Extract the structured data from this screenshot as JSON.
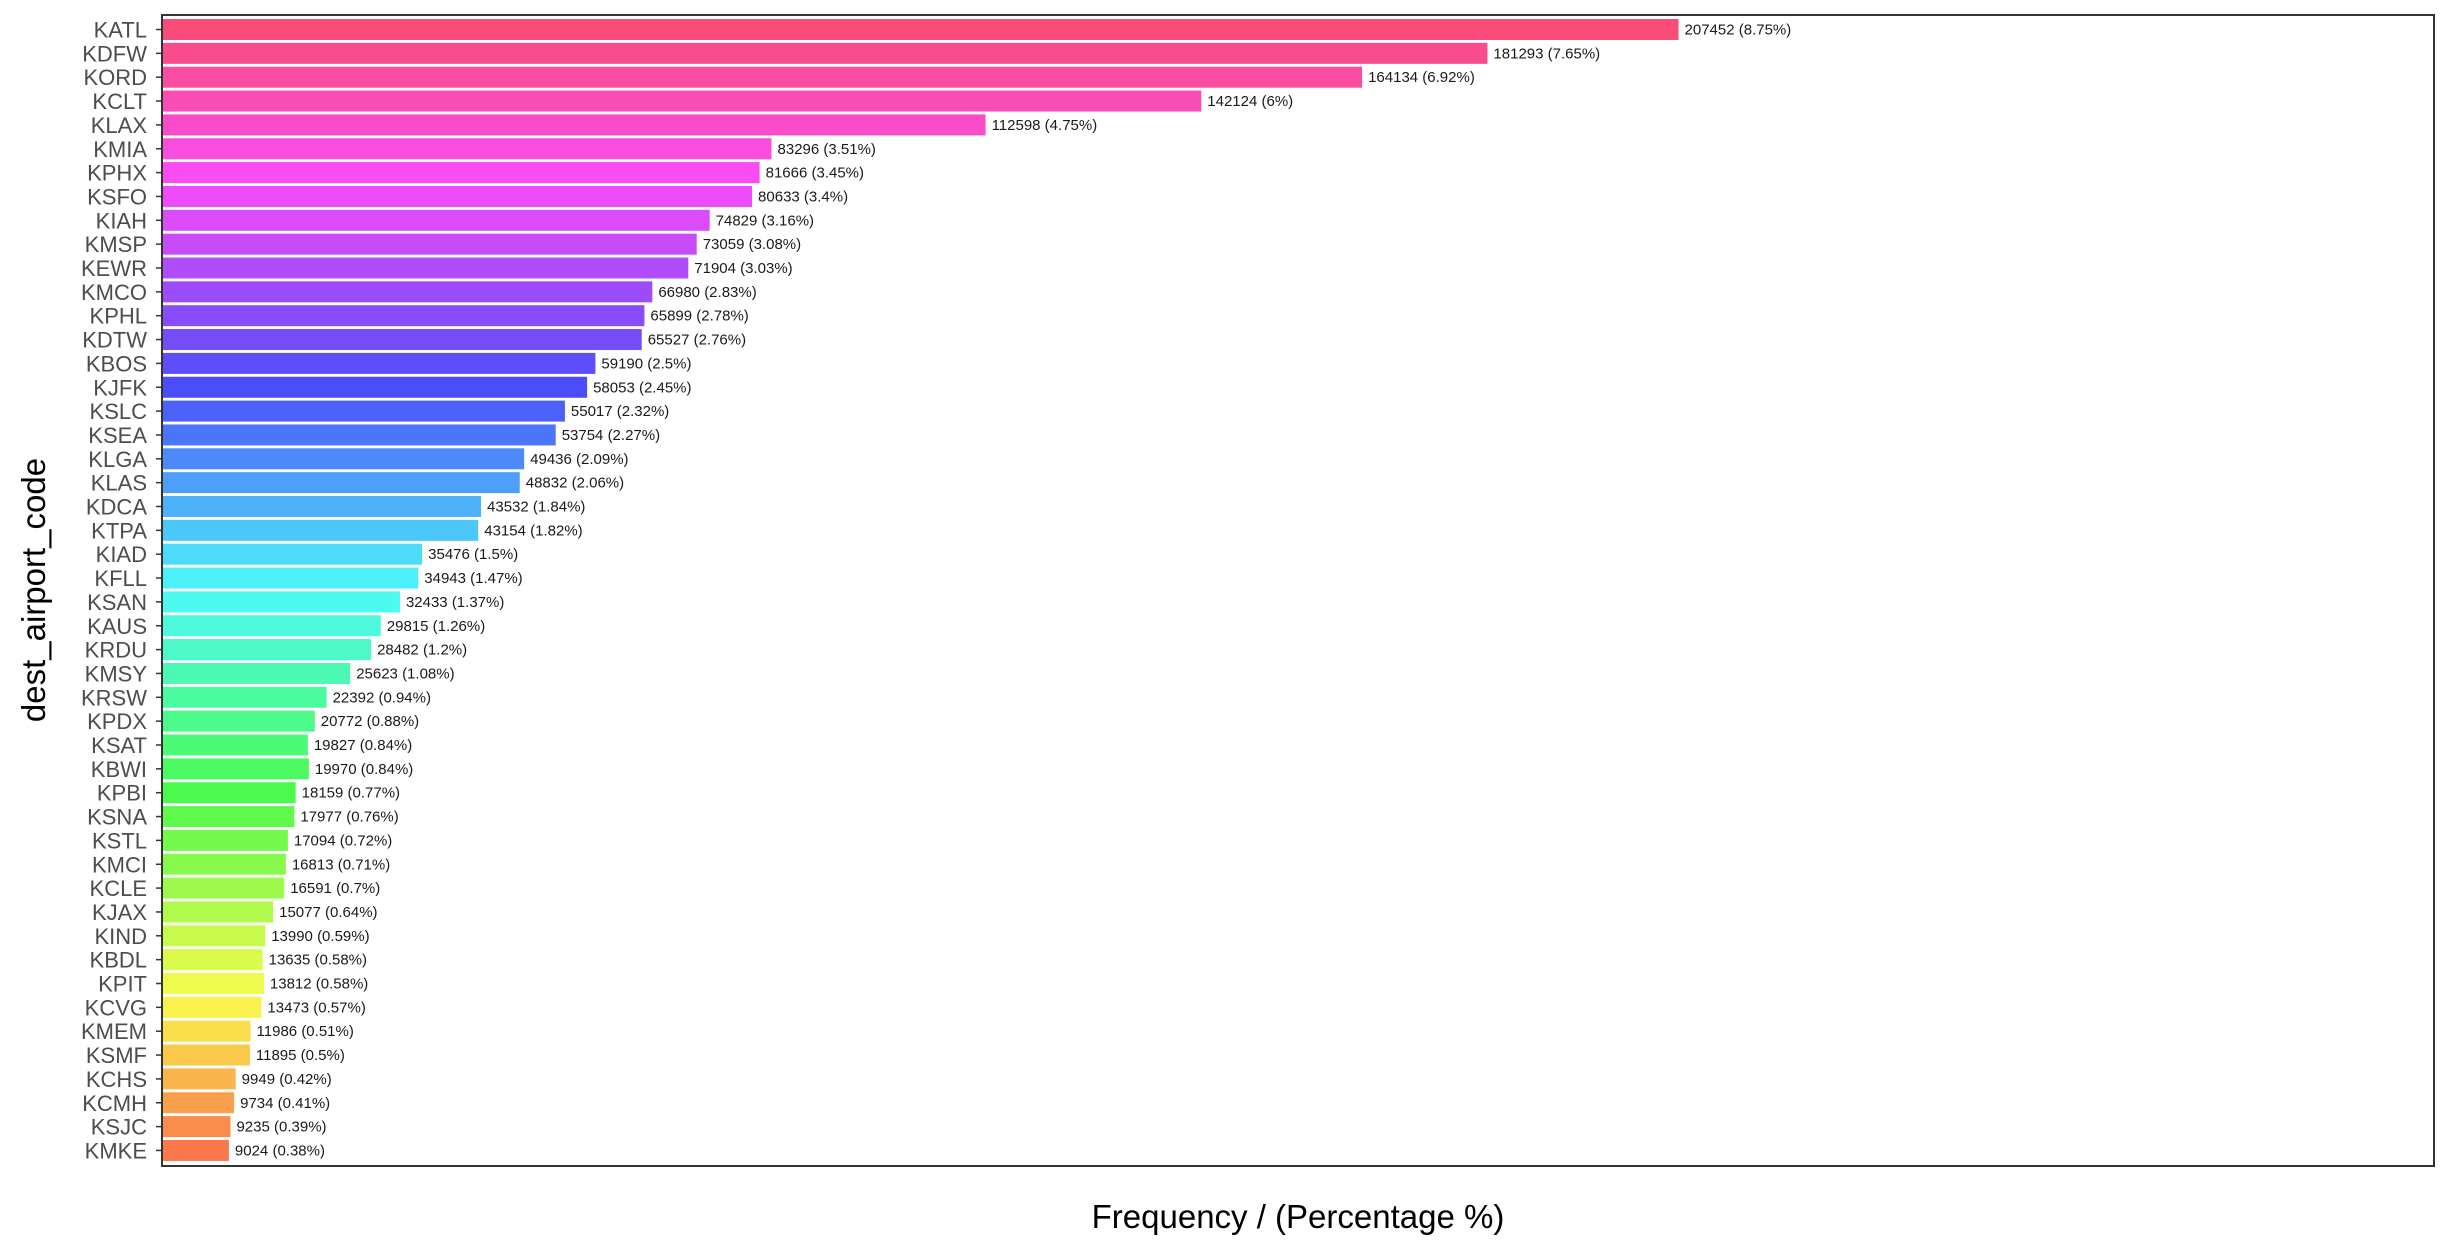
{
  "chart_data": {
    "type": "bar",
    "orientation": "horizontal",
    "xlabel": "Frequency / (Percentage %)",
    "ylabel": "dest_airport_code",
    "grid": false,
    "legend": "none",
    "xlim": [
      0,
      311000
    ],
    "categories": [
      "KATL",
      "KDFW",
      "KORD",
      "KCLT",
      "KLAX",
      "KMIA",
      "KPHX",
      "KSFO",
      "KIAH",
      "KMSP",
      "KEWR",
      "KMCO",
      "KPHL",
      "KDTW",
      "KBOS",
      "KJFK",
      "KSLC",
      "KSEA",
      "KLGA",
      "KLAS",
      "KDCA",
      "KTPA",
      "KIAD",
      "KFLL",
      "KSAN",
      "KAUS",
      "KRDU",
      "KMSY",
      "KRSW",
      "KPDX",
      "KSAT",
      "KBWI",
      "KPBI",
      "KSNA",
      "KSTL",
      "KMCI",
      "KCLE",
      "KJAX",
      "KIND",
      "KBDL",
      "KPIT",
      "KCVG",
      "KMEM",
      "KSMF",
      "KCHS",
      "KCMH",
      "KSJC",
      "KMKE"
    ],
    "values": [
      207452,
      181293,
      164134,
      142124,
      112598,
      83296,
      81666,
      80633,
      74829,
      73059,
      71904,
      66980,
      65899,
      65527,
      59190,
      58053,
      55017,
      53754,
      49436,
      48832,
      43532,
      43154,
      35476,
      34943,
      32433,
      29815,
      28482,
      25623,
      22392,
      20772,
      19827,
      19970,
      18159,
      17977,
      17094,
      16813,
      16591,
      15077,
      13990,
      13635,
      13812,
      13473,
      11986,
      11895,
      9949,
      9734,
      9235,
      9024
    ],
    "labels": [
      "207452 (8.75%)",
      "181293 (7.65%)",
      "164134 (6.92%)",
      "142124 (6%)",
      "112598 (4.75%)",
      "83296 (3.51%)",
      "81666 (3.45%)",
      "80633 (3.4%)",
      "74829 (3.16%)",
      "73059 (3.08%)",
      "71904 (3.03%)",
      "66980 (2.83%)",
      "65899 (2.78%)",
      "65527 (2.76%)",
      "59190 (2.5%)",
      "58053 (2.45%)",
      "55017 (2.32%)",
      "53754 (2.27%)",
      "49436 (2.09%)",
      "48832 (2.06%)",
      "43532 (1.84%)",
      "43154 (1.82%)",
      "35476 (1.5%)",
      "34943 (1.47%)",
      "32433 (1.37%)",
      "29815 (1.26%)",
      "28482 (1.2%)",
      "25623 (1.08%)",
      "22392 (0.94%)",
      "20772 (0.88%)",
      "19827 (0.84%)",
      "19970 (0.84%)",
      "18159 (0.77%)",
      "17977 (0.76%)",
      "17094 (0.72%)",
      "16813 (0.71%)",
      "16591 (0.7%)",
      "15077 (0.64%)",
      "13990 (0.59%)",
      "13635 (0.58%)",
      "13812 (0.58%)",
      "13473 (0.57%)",
      "11986 (0.51%)",
      "11895 (0.5%)",
      "9949 (0.42%)",
      "9734 (0.41%)",
      "9235 (0.39%)",
      "9024 (0.38%)"
    ]
  }
}
